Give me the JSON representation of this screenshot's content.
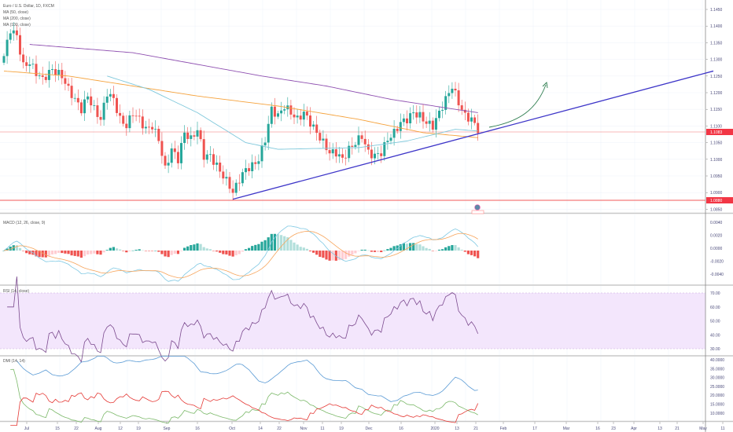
{
  "legend": {
    "symbol": "Euro / U.S. Dollar, 1D, FXCM",
    "ma1": "MA (50, close)",
    "ma2": "MA (200, close)",
    "ma3": "MA (100, close)",
    "macd": "MACD (12, 26, close, 9)",
    "rsi": "RSI (14, close)",
    "dmi": "DMI (14, 14)"
  },
  "colors": {
    "up": "#26a69a",
    "down": "#ef5350",
    "ma50": "#7fc8db",
    "ma100": "#f5a23c",
    "ma200": "#8e4fb0",
    "trendline": "#3d35c8",
    "arrow": "#2e7d4f",
    "rsi_bg": "#f3e6fc",
    "rsi_line": "#7b4a8e",
    "macd_line": "#7ec8e3",
    "signal_line": "#f7a55c",
    "di_plus": "#7cb96a",
    "di_minus": "#e53935",
    "adx": "#5b9bd5"
  },
  "price_axis": [
    "1.1450",
    "1.1400",
    "1.1350",
    "1.1300",
    "1.1250",
    "1.1200",
    "1.1150",
    "1.1100",
    "1.1050",
    "1.1000",
    "1.0950",
    "1.0900",
    "1.0850"
  ],
  "price_tags": {
    "current": "1.1083",
    "support": "1.0880"
  },
  "macd_axis": [
    "0.0040",
    "0.0020",
    "0.0000",
    "-0.0020",
    "-0.0040"
  ],
  "rsi_axis": [
    "70.00",
    "60.00",
    "50.00",
    "40.00",
    "30.00"
  ],
  "dmi_axis": [
    "40.0000",
    "35.0000",
    "30.0000",
    "25.0000",
    "20.0000",
    "15.0000",
    "10.0000"
  ],
  "time_axis": [
    "Jul",
    "15",
    "22",
    "Aug",
    "12",
    "19",
    "Sep",
    "16",
    "Oct",
    "14",
    "22",
    "Nov",
    "11",
    "19",
    "Dec",
    "16",
    "2020",
    "13",
    "21",
    "Feb",
    "17",
    "Mar",
    "16",
    "23",
    "Apr",
    "13",
    "21",
    "May",
    "11"
  ],
  "chart_data": {
    "type": "candlestick",
    "title": "Euro / U.S. Dollar, 1D, FXCM",
    "close_keypoints": [
      [
        0,
        1.131
      ],
      [
        2,
        1.139
      ],
      [
        4,
        1.137
      ],
      [
        6,
        1.128
      ],
      [
        8,
        1.129
      ],
      [
        10,
        1.126
      ],
      [
        12,
        1.124
      ],
      [
        15,
        1.127
      ],
      [
        18,
        1.125
      ],
      [
        20,
        1.121
      ],
      [
        22,
        1.118
      ],
      [
        24,
        1.115
      ],
      [
        26,
        1.119
      ],
      [
        28,
        1.115
      ],
      [
        30,
        1.112
      ],
      [
        32,
        1.12
      ],
      [
        34,
        1.118
      ],
      [
        36,
        1.112
      ],
      [
        38,
        1.11
      ],
      [
        40,
        1.114
      ],
      [
        42,
        1.112
      ],
      [
        44,
        1.109
      ],
      [
        46,
        1.11
      ],
      [
        48,
        1.106
      ],
      [
        50,
        1.097
      ],
      [
        52,
        1.103
      ],
      [
        54,
        1.1
      ],
      [
        56,
        1.108
      ],
      [
        58,
        1.106
      ],
      [
        60,
        1.109
      ],
      [
        62,
        1.101
      ],
      [
        64,
        1.101
      ],
      [
        66,
        1.098
      ],
      [
        68,
        1.095
      ],
      [
        70,
        1.092
      ],
      [
        71,
        1.09
      ],
      [
        73,
        1.094
      ],
      [
        75,
        1.097
      ],
      [
        77,
        1.098
      ],
      [
        79,
        1.1
      ],
      [
        81,
        1.106
      ],
      [
        83,
        1.115
      ],
      [
        85,
        1.113
      ],
      [
        87,
        1.116
      ],
      [
        89,
        1.114
      ],
      [
        91,
        1.112
      ],
      [
        93,
        1.114
      ],
      [
        95,
        1.111
      ],
      [
        97,
        1.108
      ],
      [
        99,
        1.105
      ],
      [
        101,
        1.102
      ],
      [
        103,
        1.102
      ],
      [
        105,
        1.1
      ],
      [
        107,
        1.103
      ],
      [
        109,
        1.105
      ],
      [
        111,
        1.107
      ],
      [
        113,
        1.102
      ],
      [
        115,
        1.101
      ],
      [
        117,
        1.102
      ],
      [
        119,
        1.106
      ],
      [
        121,
        1.108
      ],
      [
        123,
        1.111
      ],
      [
        125,
        1.112
      ],
      [
        127,
        1.114
      ],
      [
        129,
        1.113
      ],
      [
        131,
        1.111
      ],
      [
        133,
        1.11
      ],
      [
        135,
        1.114
      ],
      [
        137,
        1.118
      ],
      [
        138,
        1.12
      ],
      [
        139,
        1.122
      ],
      [
        141,
        1.117
      ],
      [
        143,
        1.113
      ],
      [
        145,
        1.112
      ],
      [
        147,
        1.109
      ]
    ],
    "ma200_keypoints": [
      [
        8,
        1.1345
      ],
      [
        40,
        1.132
      ],
      [
        80,
        1.125
      ],
      [
        100,
        1.122
      ],
      [
        120,
        1.118
      ],
      [
        140,
        1.115
      ],
      [
        147,
        1.114
      ]
    ],
    "ma100_keypoints": [
      [
        0,
        1.1265
      ],
      [
        20,
        1.125
      ],
      [
        40,
        1.122
      ],
      [
        60,
        1.119
      ],
      [
        85,
        1.116
      ],
      [
        110,
        1.112
      ],
      [
        130,
        1.108
      ],
      [
        147,
        1.1065
      ]
    ],
    "ma50_keypoints": [
      [
        32,
        1.125
      ],
      [
        45,
        1.121
      ],
      [
        60,
        1.114
      ],
      [
        75,
        1.105
      ],
      [
        85,
        1.103
      ],
      [
        110,
        1.1035
      ],
      [
        125,
        1.1055
      ],
      [
        140,
        1.109
      ],
      [
        147,
        1.1085
      ]
    ],
    "trendline": [
      [
        71,
        1.088
      ],
      [
        220,
        1.1265
      ]
    ],
    "ylim": [
      1.083,
      1.148
    ]
  }
}
